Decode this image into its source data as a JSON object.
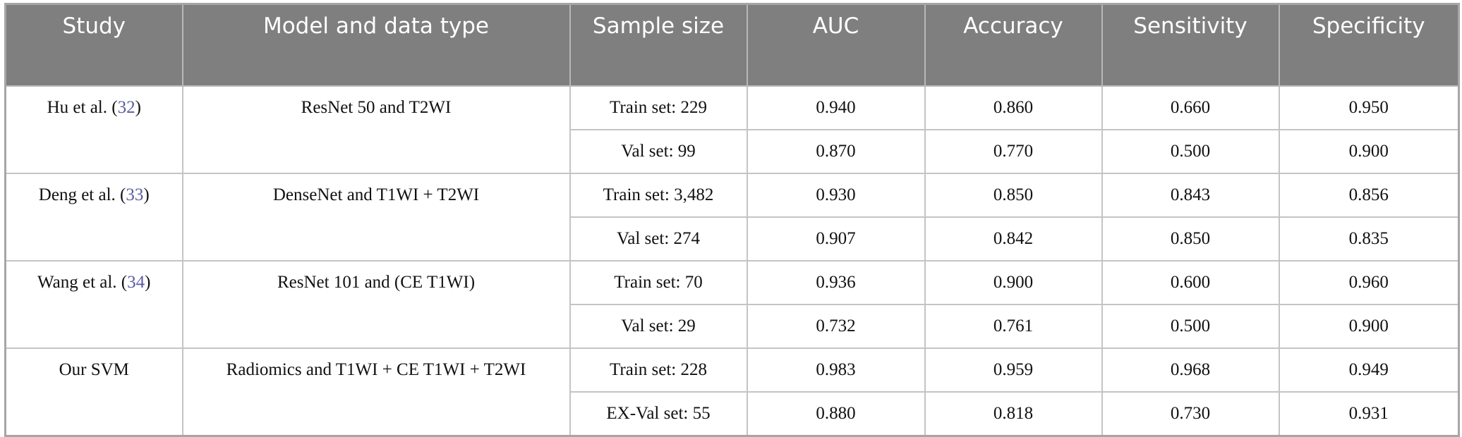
{
  "table": {
    "columns": [
      "Study",
      "Model and data type",
      "Sample size",
      "AUC",
      "Accuracy",
      "Sensitivity",
      "Specificity"
    ],
    "groups": [
      {
        "study": [
          "Hu et al. (",
          "32",
          ")"
        ],
        "model": "ResNet 50 and T2WI",
        "rows": [
          [
            "Train set: 229",
            "0.940",
            "0.860",
            "0.660",
            "0.950"
          ],
          [
            "Val set: 99",
            "0.870",
            "0.770",
            "0.500",
            "0.900"
          ]
        ]
      },
      {
        "study": [
          "Deng et al. (",
          "33",
          ")"
        ],
        "model": "DenseNet and T1WI + T2WI",
        "rows": [
          [
            "Train set: 3,482",
            "0.930",
            "0.850",
            "0.843",
            "0.856"
          ],
          [
            "Val set: 274",
            "0.907",
            "0.842",
            "0.850",
            "0.835"
          ]
        ]
      },
      {
        "study": [
          "Wang et al. (",
          "34",
          ")"
        ],
        "model": "ResNet 101 and (CE T1WI)",
        "rows": [
          [
            "Train set: 70",
            "0.936",
            "0.900",
            "0.600",
            "0.960"
          ],
          [
            "Val set: 29",
            "0.732",
            "0.761",
            "0.500",
            "0.900"
          ]
        ]
      },
      {
        "study": [
          "Our SVM"
        ],
        "model": "Radiomics and T1WI + CE T1WI + T2WI",
        "rows": [
          [
            "Train set: 228",
            "0.983",
            "0.959",
            "0.968",
            "0.949"
          ],
          [
            "EX-Val set: 55",
            "0.880",
            "0.818",
            "0.730",
            "0.931"
          ]
        ]
      }
    ]
  }
}
